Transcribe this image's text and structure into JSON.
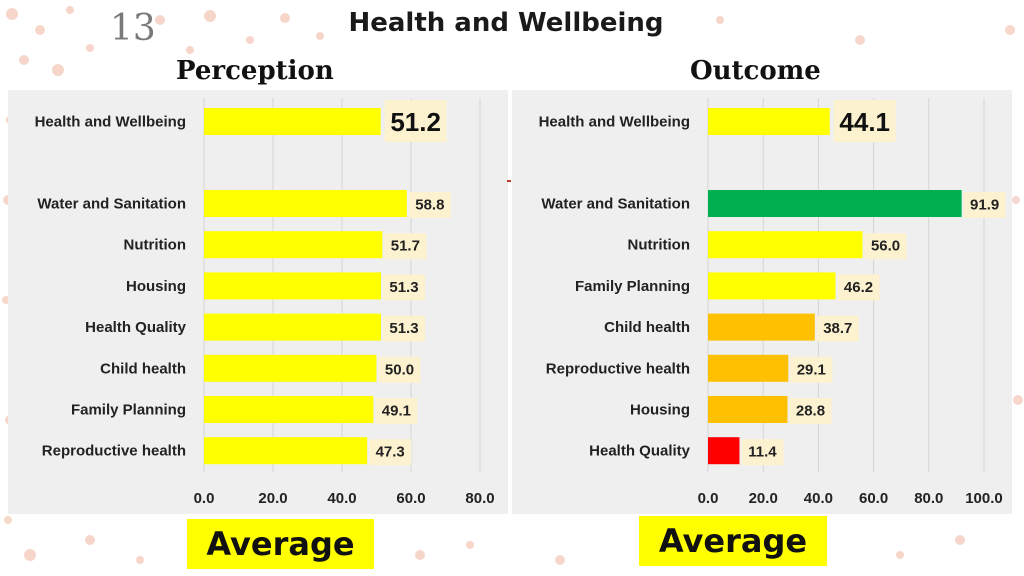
{
  "slide_number": "13",
  "title": "Health and Wellbeing",
  "average_label": "Average",
  "colors": {
    "yellow": "#ffff00",
    "green": "#00b050",
    "orange": "#ffc000",
    "red": "#ff0000",
    "label_bg": "#fdf2d0",
    "panel_bg": "#efefef"
  },
  "chart_data": [
    {
      "type": "bar",
      "orientation": "horizontal",
      "title": "Perception",
      "headline": {
        "category": "Health and Wellbeing",
        "value": 51.2,
        "label": "51.2"
      },
      "categories": [
        "Water and Sanitation",
        "Nutrition",
        "Housing",
        "Health Quality",
        "Child health",
        "Family Planning",
        "Reproductive health"
      ],
      "values": [
        58.8,
        51.7,
        51.3,
        51.3,
        50.0,
        49.1,
        47.3
      ],
      "value_labels": [
        "58.8",
        "51.7",
        "51.3",
        "51.3",
        "50.0",
        "49.1",
        "47.3"
      ],
      "bar_colors": [
        "yellow",
        "yellow",
        "yellow",
        "yellow",
        "yellow",
        "yellow",
        "yellow"
      ],
      "xlim": [
        0,
        80
      ],
      "ticks": [
        0,
        20,
        40,
        60,
        80
      ],
      "tick_labels": [
        "0.0",
        "20.0",
        "40.0",
        "60.0",
        "80.0"
      ],
      "grid": true
    },
    {
      "type": "bar",
      "orientation": "horizontal",
      "title": "Outcome",
      "headline": {
        "category": "Health and Wellbeing",
        "value": 44.1,
        "label": "44.1"
      },
      "categories": [
        "Water and Sanitation",
        "Nutrition",
        "Family Planning",
        "Child health",
        "Reproductive health",
        "Housing",
        "Health Quality"
      ],
      "values": [
        91.9,
        56.0,
        46.2,
        38.7,
        29.1,
        28.8,
        11.4
      ],
      "value_labels": [
        "91.9",
        "56.0",
        "46.2",
        "38.7",
        "29.1",
        "28.8",
        "11.4"
      ],
      "bar_colors": [
        "green",
        "yellow",
        "yellow",
        "orange",
        "orange",
        "orange",
        "red"
      ],
      "xlim": [
        0,
        100
      ],
      "ticks": [
        0,
        20,
        40,
        60,
        80,
        100
      ],
      "tick_labels": [
        "0.0",
        "20.0",
        "40.0",
        "60.0",
        "80.0",
        "100.0"
      ],
      "grid": true
    }
  ]
}
